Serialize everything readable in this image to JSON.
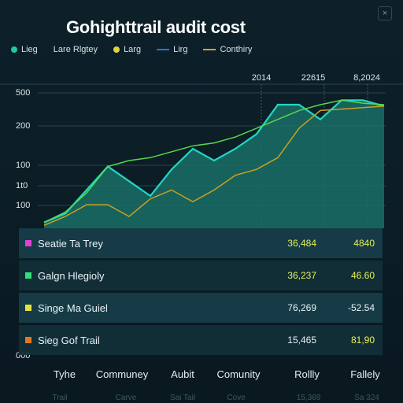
{
  "title": "Gohighttrail audit cost",
  "close_icon": "close-icon",
  "legend": [
    {
      "label": "Lieg",
      "kind": "dot",
      "color": "#1fc9a4"
    },
    {
      "label": "Lare Rlgtey",
      "kind": "none",
      "color": ""
    },
    {
      "label": "Larg",
      "kind": "dot",
      "color": "#e0d43a"
    },
    {
      "label": "Lirg",
      "kind": "dash",
      "color": "#2d6fe0"
    },
    {
      "label": "Conthiry",
      "kind": "dash",
      "color": "#d4a428"
    }
  ],
  "table_rows": [
    {
      "label": "Seatie Ta Trey",
      "color": "#e040d6",
      "v1": "36,484",
      "v2": "4840",
      "v1_color": "#e6f05a",
      "v2_color": "#e6f05a"
    },
    {
      "label": "Galgn Hlegioly",
      "color": "#2fe07a",
      "v1": "36,237",
      "v2": "46.60",
      "v1_color": "#e6f05a",
      "v2_color": "#e6f05a"
    },
    {
      "label": "Singe Ma Guiel",
      "color": "#e6e23a",
      "v1": "76,269",
      "v2": "-52.54",
      "v1_color": "#e8f2f4",
      "v2_color": "#e8f2f4"
    },
    {
      "label": "Sieg Gof Trail",
      "color": "#e07a20",
      "v1": "15,465",
      "v2": "81,90",
      "v1_color": "#e8f2f4",
      "v2_color": "#e6f05a"
    }
  ],
  "x_categories": [
    "Tyhe",
    "Communey",
    "Aubit",
    "Comunity",
    "Rollly",
    "Fallely"
  ],
  "x_subcategories": [
    "Trail",
    "Carve",
    "Sai Tail",
    "Cove",
    "15,369",
    "Sa 324"
  ],
  "chart_data": {
    "type": "area",
    "title": "Gohighttrail audit cost",
    "y_tick_labels": [
      "500",
      "200",
      "100",
      "1t0",
      "100",
      "000"
    ],
    "top_labels": [
      "2014",
      "22615",
      "8,2024"
    ],
    "x": [
      0,
      1,
      2,
      3,
      4,
      5,
      6,
      7,
      8,
      9,
      10,
      11,
      12,
      13,
      14,
      15,
      16
    ],
    "series": [
      {
        "kind": "area",
        "color": "#22d6c4",
        "fill": "#1a6f66",
        "values": [
          120,
          150,
          230,
          310,
          260,
          210,
          300,
          370,
          330,
          370,
          420,
          520,
          520,
          470,
          535,
          535,
          515
        ]
      },
      {
        "kind": "line",
        "color": "#57d84a",
        "values": [
          120,
          155,
          220,
          310,
          330,
          340,
          360,
          380,
          390,
          410,
          440,
          470,
          500,
          520,
          535,
          525,
          520
        ]
      },
      {
        "kind": "line",
        "color": "#c9a21f",
        "values": [
          110,
          140,
          180,
          180,
          140,
          200,
          230,
          190,
          230,
          280,
          300,
          340,
          440,
          500,
          505,
          510,
          515
        ]
      }
    ],
    "grid": true,
    "legend_position": "top-left"
  }
}
